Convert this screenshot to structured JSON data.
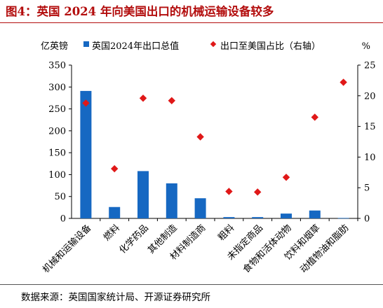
{
  "title": "图4：英国 2024 年向美国出口的机械运输设备较多",
  "source": "数据来源：英国国家统计局、开源证券研究所",
  "colors": {
    "bar": "#1668c2",
    "marker": "#e01818",
    "title": "#b30d0d"
  },
  "chart_data": {
    "type": "bar",
    "left_unit": "亿英镑",
    "right_unit": "%",
    "categories": [
      "机械和运输设备",
      "燃料",
      "化学药品",
      "其他制造",
      "材料制造商",
      "粗料",
      "未指定商品",
      "食物和活体动物",
      "饮料和烟草",
      "动植物油和脂肪"
    ],
    "series": [
      {
        "name": "英国2024年出口总值",
        "type": "bar",
        "axis": "left",
        "values": [
          291,
          26,
          108,
          80,
          46,
          3,
          3,
          11,
          18,
          1
        ]
      },
      {
        "name": "出口至美国占比（右轴）",
        "type": "scatter",
        "axis": "right",
        "values": [
          18.8,
          8.1,
          19.6,
          19.2,
          13.3,
          4.4,
          4.3,
          6.7,
          16.5,
          22.2
        ]
      }
    ],
    "left_ylim": [
      0,
      350
    ],
    "left_ticks": [
      "0",
      "50",
      "100",
      "150",
      "200",
      "250",
      "300",
      "350"
    ],
    "right_ylim": [
      0,
      25
    ],
    "right_ticks": [
      "0",
      "5",
      "10",
      "15",
      "20",
      "25"
    ],
    "legend_position": "top"
  }
}
